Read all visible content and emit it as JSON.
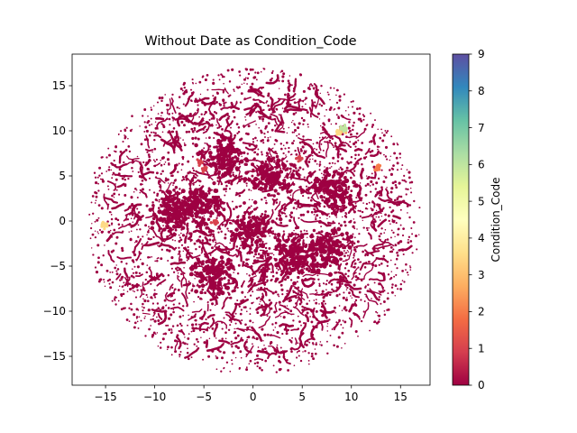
{
  "chart_data": {
    "type": "scatter",
    "title": "Without Date as Condition_Code",
    "xlabel": "",
    "ylabel": "",
    "xlim": [
      -18.4,
      18.0
    ],
    "ylim": [
      -18.2,
      18.5
    ],
    "x_ticks": [
      -15,
      -10,
      -5,
      0,
      5,
      10,
      15
    ],
    "y_ticks": [
      -15,
      -10,
      -5,
      0,
      5,
      10,
      15
    ],
    "grid": false,
    "colormap": "Spectral",
    "colorbar": {
      "label": "Condition_Code",
      "range": [
        0,
        9
      ],
      "ticks": [
        0,
        1,
        2,
        3,
        4,
        5,
        6,
        7,
        8,
        9
      ],
      "stops": [
        "#9e0142",
        "#d53e4f",
        "#f46d43",
        "#fdae61",
        "#fee08b",
        "#ffffbf",
        "#e6f598",
        "#abdda4",
        "#66c2a5",
        "#3288bd",
        "#5e4fa2"
      ]
    },
    "background_cloud": {
      "description_value": 0,
      "center": [
        0,
        0
      ],
      "radius": 17
    },
    "dense_clusters": [
      {
        "x": 0,
        "y": -1,
        "value": 0
      },
      {
        "x": -5.5,
        "y": 2,
        "value": 0
      },
      {
        "x": -8,
        "y": 1,
        "value": 0
      },
      {
        "x": 7.5,
        "y": -3,
        "value": 0
      },
      {
        "x": 4,
        "y": -4,
        "value": 0
      },
      {
        "x": -4,
        "y": -6,
        "value": 0
      },
      {
        "x": 8,
        "y": 3.5,
        "value": 0
      },
      {
        "x": 2,
        "y": 5,
        "value": 0
      },
      {
        "x": -3,
        "y": 7,
        "value": 0
      }
    ],
    "highlight_points": [
      {
        "x": -5.5,
        "y": 6.5,
        "value": 1
      },
      {
        "x": -5.0,
        "y": 5.8,
        "value": 1
      },
      {
        "x": 4.7,
        "y": 7.0,
        "value": 1
      },
      {
        "x": -3.9,
        "y": -0.1,
        "value": 1
      },
      {
        "x": 12.7,
        "y": 5.9,
        "value": 2
      },
      {
        "x": 9.0,
        "y": 10.0,
        "value": 3
      },
      {
        "x": 8.7,
        "y": 9.8,
        "value": 3.5
      },
      {
        "x": -15.1,
        "y": -0.4,
        "value": 3.5
      },
      {
        "x": 9.2,
        "y": 10.3,
        "value": 6
      }
    ]
  }
}
